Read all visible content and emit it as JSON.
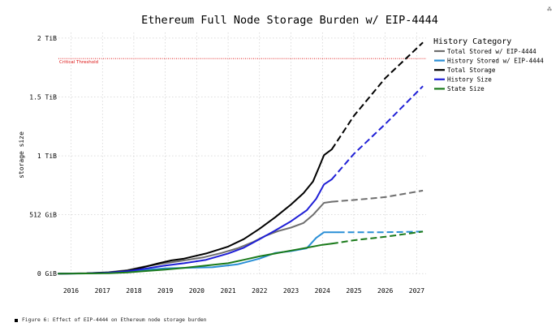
{
  "chart_data": {
    "type": "line",
    "title": "Ethereum Full Node Storage Burden w/ EIP-4444",
    "xlabel": "",
    "ylabel": "storage size",
    "xlim": [
      2015.6,
      2027.3
    ],
    "ylim": [
      -20,
      2097
    ],
    "x_ticks": [
      2016,
      2017,
      2018,
      2019,
      2020,
      2021,
      2022,
      2023,
      2024,
      2025,
      2026,
      2027
    ],
    "y_ticks": [
      {
        "value": 0,
        "label": "0 GiB"
      },
      {
        "value": 512,
        "label": "512 GiB"
      },
      {
        "value": 1024,
        "label": "1 TiB"
      },
      {
        "value": 1536,
        "label": "1.5 TiB"
      },
      {
        "value": 2048,
        "label": "2 TiB"
      }
    ],
    "grid": true,
    "legend": {
      "title": "History Category",
      "placement": "right"
    },
    "threshold": {
      "value": 1870,
      "label": "Critical Threshold",
      "color": "#dd0000"
    },
    "series": [
      {
        "name": "Total Stored w/ EIP-4444",
        "color": "#6e6e6e",
        "points": [
          [
            2015.6,
            0
          ],
          [
            2016.5,
            2
          ],
          [
            2017.2,
            12
          ],
          [
            2017.8,
            30
          ],
          [
            2018.3,
            60
          ],
          [
            2019,
            90
          ],
          [
            2019.6,
            115
          ],
          [
            2020.2,
            140
          ],
          [
            2020.8,
            180
          ],
          [
            2021.3,
            220
          ],
          [
            2021.8,
            275
          ],
          [
            2022.2,
            330
          ],
          [
            2022.6,
            370
          ],
          [
            2023,
            400
          ],
          [
            2023.4,
            440
          ],
          [
            2023.7,
            510
          ],
          [
            2024.05,
            615
          ],
          [
            2024.3,
            625
          ]
        ],
        "projection": [
          [
            2024.3,
            625
          ],
          [
            2025,
            640
          ],
          [
            2026,
            665
          ],
          [
            2027.2,
            722
          ]
        ]
      },
      {
        "name": "History Stored w/ EIP-4444",
        "color": "#2a8fd6",
        "points": [
          [
            2015.6,
            0
          ],
          [
            2016.5,
            1
          ],
          [
            2017.2,
            5
          ],
          [
            2017.8,
            15
          ],
          [
            2018.3,
            30
          ],
          [
            2019,
            45
          ],
          [
            2019.6,
            50
          ],
          [
            2020.5,
            55
          ],
          [
            2021.3,
            80
          ],
          [
            2022,
            130
          ],
          [
            2022.5,
            180
          ],
          [
            2023,
            195
          ],
          [
            2023.5,
            220
          ],
          [
            2023.8,
            310
          ],
          [
            2024.05,
            360
          ],
          [
            2024.5,
            360
          ]
        ],
        "projection": [
          [
            2024.5,
            360
          ],
          [
            2026,
            360
          ],
          [
            2027.2,
            365
          ]
        ]
      },
      {
        "name": "Total Storage",
        "color": "#000000",
        "points": [
          [
            2015.6,
            0
          ],
          [
            2016.5,
            3
          ],
          [
            2017.2,
            10
          ],
          [
            2017.8,
            25
          ],
          [
            2018.3,
            55
          ],
          [
            2018.8,
            90
          ],
          [
            2019.2,
            115
          ],
          [
            2019.6,
            130
          ],
          [
            2020.3,
            175
          ],
          [
            2021,
            235
          ],
          [
            2021.5,
            300
          ],
          [
            2022,
            390
          ],
          [
            2022.5,
            490
          ],
          [
            2023,
            600
          ],
          [
            2023.4,
            700
          ],
          [
            2023.7,
            800
          ],
          [
            2023.9,
            930
          ],
          [
            2024.05,
            1030
          ],
          [
            2024.3,
            1080
          ]
        ],
        "projection": [
          [
            2024.3,
            1080
          ],
          [
            2025,
            1370
          ],
          [
            2026,
            1700
          ],
          [
            2027.2,
            2010
          ]
        ]
      },
      {
        "name": "History Size",
        "color": "#1f1fd6",
        "points": [
          [
            2015.6,
            0
          ],
          [
            2016.5,
            2
          ],
          [
            2017.2,
            8
          ],
          [
            2017.8,
            20
          ],
          [
            2018.3,
            40
          ],
          [
            2019,
            70
          ],
          [
            2019.6,
            90
          ],
          [
            2020.3,
            120
          ],
          [
            2021,
            175
          ],
          [
            2021.5,
            225
          ],
          [
            2022,
            300
          ],
          [
            2022.5,
            375
          ],
          [
            2023,
            455
          ],
          [
            2023.5,
            550
          ],
          [
            2023.8,
            650
          ],
          [
            2024.05,
            775
          ],
          [
            2024.3,
            820
          ]
        ],
        "projection": [
          [
            2024.3,
            820
          ],
          [
            2025,
            1040
          ],
          [
            2026,
            1300
          ],
          [
            2027.2,
            1630
          ]
        ]
      },
      {
        "name": "State Size",
        "color": "#1a7a1a",
        "points": [
          [
            2015.6,
            0
          ],
          [
            2016.5,
            1
          ],
          [
            2017.2,
            3
          ],
          [
            2017.8,
            10
          ],
          [
            2018.3,
            20
          ],
          [
            2019,
            35
          ],
          [
            2019.6,
            50
          ],
          [
            2020.3,
            70
          ],
          [
            2021,
            90
          ],
          [
            2021.5,
            120
          ],
          [
            2022,
            150
          ],
          [
            2022.5,
            175
          ],
          [
            2023,
            200
          ],
          [
            2023.5,
            225
          ],
          [
            2024,
            250
          ],
          [
            2024.3,
            260
          ]
        ],
        "projection": [
          [
            2024.3,
            260
          ],
          [
            2025,
            290
          ],
          [
            2026,
            320
          ],
          [
            2027.2,
            365
          ]
        ]
      }
    ]
  },
  "caption": "Figure 6: Effect of EIP-4444 on Ethereum node storage burden",
  "corner_mark": "⁂"
}
